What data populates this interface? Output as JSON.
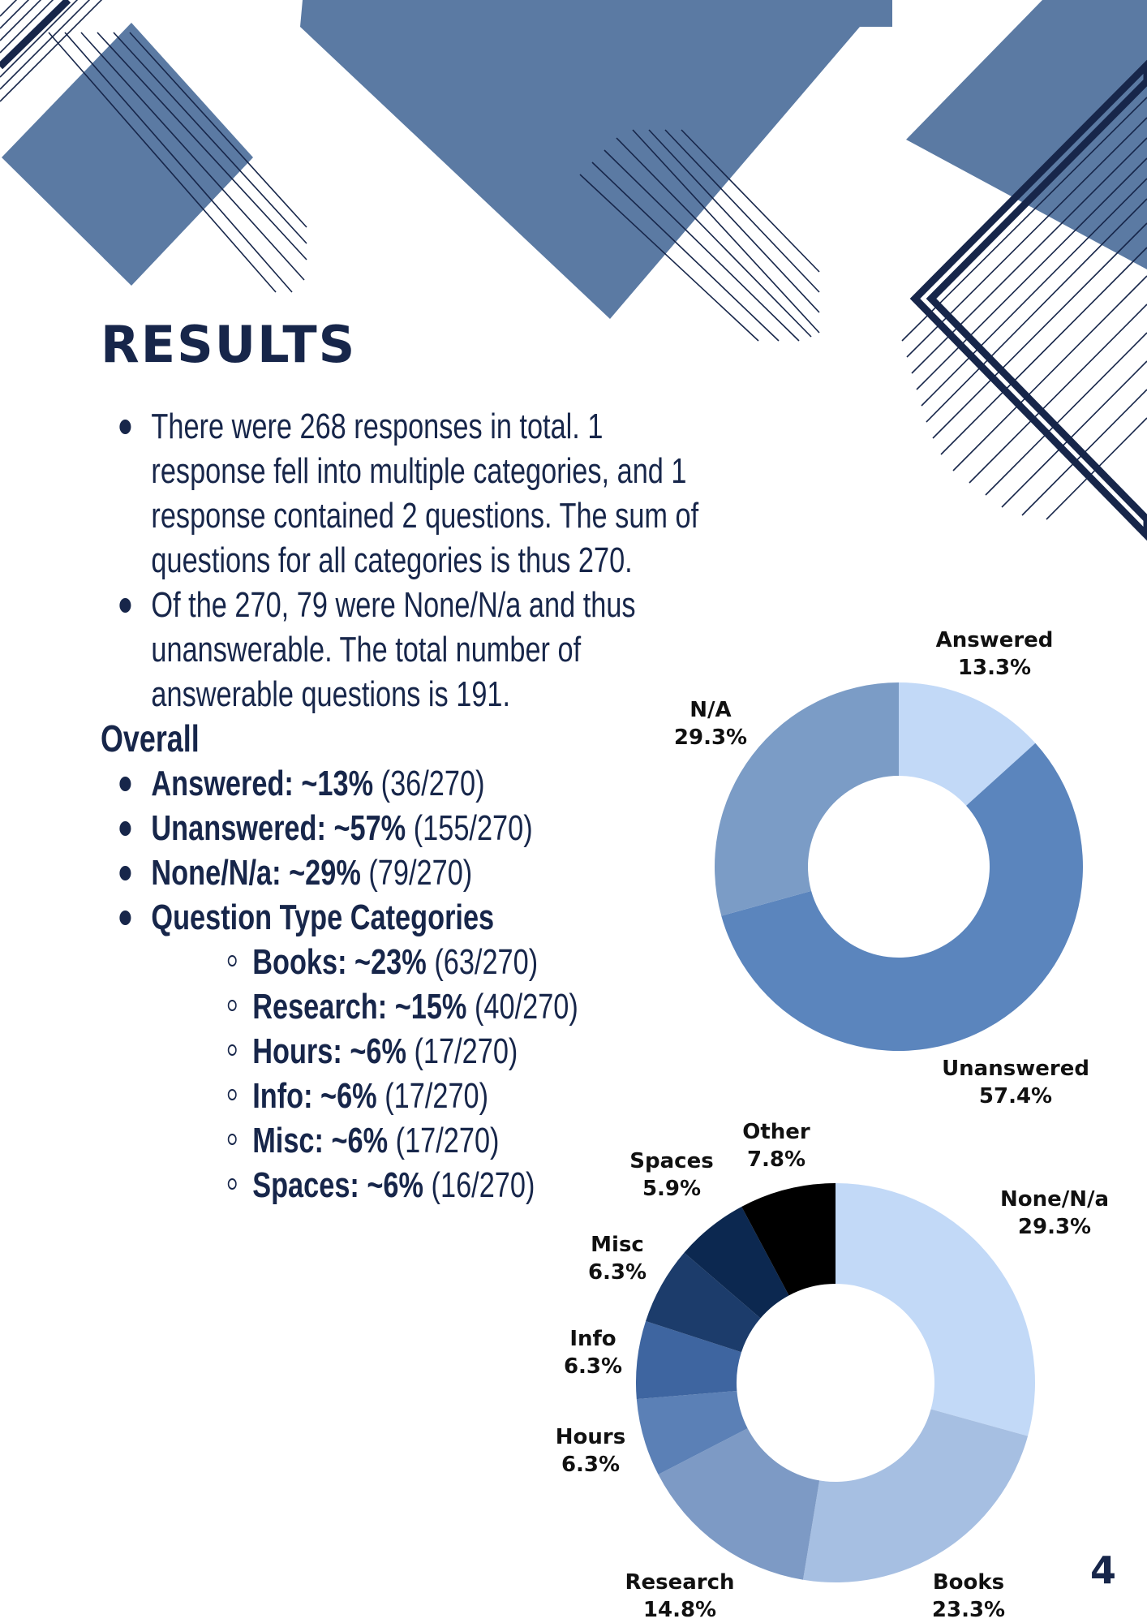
{
  "page": {
    "title": "RESULTS",
    "page_number": "4"
  },
  "colors": {
    "navy": "#17264a",
    "deco_blue": "#5b7aa3",
    "chart1": [
      "#c2d9f7",
      "#5b85bd",
      "#7b9cc6"
    ],
    "chart2": [
      "#c2d9f7",
      "#a6bfe2",
      "#7d9ac5",
      "#5b80b6",
      "#3e65a0",
      "#1c3c6b",
      "#0c2850",
      "#000000"
    ]
  },
  "bullets": [
    "There were 268 responses in total. 1 response fell into multiple categories, and 1 response contained 2 questions. The sum of questions for all categories is thus 270.",
    "Of the 270, 79 were None/N/a and thus unanswerable. The total number of answerable questions is 191."
  ],
  "overall": {
    "heading": "Overall",
    "items": [
      {
        "label": "Answered: ~13%",
        "count": " (36/270)"
      },
      {
        "label": "Unanswered: ~57%",
        "count": " (155/270)"
      },
      {
        "label": "None/N/a: ~29%",
        "count": " (79/270)"
      }
    ],
    "categories_heading": "Question Type Categories",
    "categories": [
      {
        "label": "Books: ~23%",
        "count": " (63/270)"
      },
      {
        "label": "Research: ~15%",
        "count": " (40/270)"
      },
      {
        "label": "Hours: ~6%",
        "count": " (17/270)"
      },
      {
        "label": "Info: ~6%",
        "count": " (17/270)"
      },
      {
        "label": "Misc: ~6%",
        "count": " (17/270)"
      },
      {
        "label": "Spaces: ~6%",
        "count": " (16/270)"
      }
    ]
  },
  "chart_data": [
    {
      "type": "pie",
      "donut": true,
      "slices": [
        {
          "name": "Answered",
          "value": 13.3,
          "label": "13.3%"
        },
        {
          "name": "Unanswered",
          "value": 57.4,
          "label": "57.4%"
        },
        {
          "name": "N/A",
          "value": 29.3,
          "label": "29.3%"
        }
      ]
    },
    {
      "type": "pie",
      "donut": true,
      "slices": [
        {
          "name": "None/N/a",
          "value": 29.3,
          "label": "29.3%"
        },
        {
          "name": "Books",
          "value": 23.3,
          "label": "23.3%"
        },
        {
          "name": "Research",
          "value": 14.8,
          "label": "14.8%"
        },
        {
          "name": "Hours",
          "value": 6.3,
          "label": "6.3%"
        },
        {
          "name": "Info",
          "value": 6.3,
          "label": "6.3%"
        },
        {
          "name": "Misc",
          "value": 6.3,
          "label": "6.3%"
        },
        {
          "name": "Spaces",
          "value": 5.9,
          "label": "5.9%"
        },
        {
          "name": "Other",
          "value": 7.8,
          "label": "7.8%"
        }
      ]
    }
  ]
}
